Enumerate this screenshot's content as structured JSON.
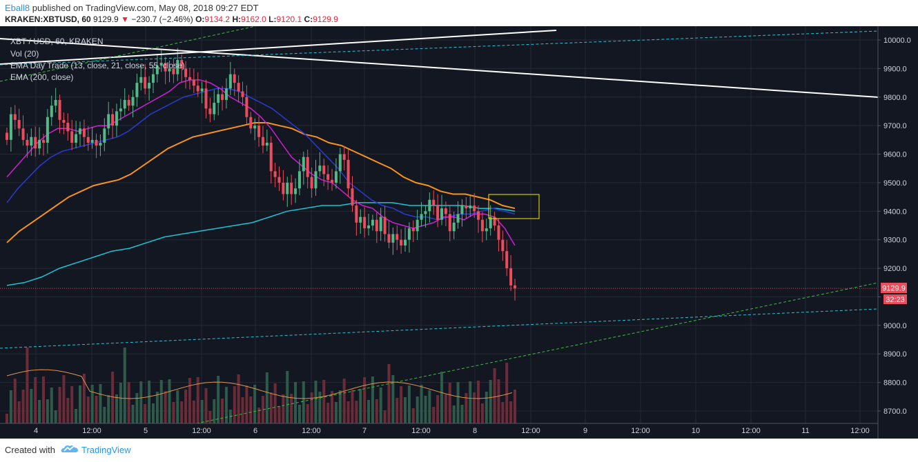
{
  "header": {
    "username": "Eball8",
    "published_text": " published on TradingView.com, May 08, 2018 09:27 EDT",
    "symbol": "KRAKEN:XBTUSD, 60",
    "last": "9129.9",
    "change": "−230.7 (−2.46%)",
    "o_label": "O:",
    "o_value": "9134.2",
    "h_label": "H:",
    "h_value": "9162.0",
    "l_label": "L:",
    "l_value": "9120.1",
    "c_label": "C:",
    "c_value": "9129.9"
  },
  "legend": {
    "line1": "XBT / USD, 60, KRAKEN",
    "line2": "Vol (20)",
    "line3": "EMA Day Trade (13, close, 21, close, 55, close)",
    "line4": "EMA (200, close)"
  },
  "price_tag": "9129.9",
  "countdown_tag": "32:23",
  "footer": {
    "created_with": "Created with",
    "brand": "TradingView"
  },
  "colors": {
    "background": "#131722",
    "grid": "#262a35",
    "up": "#53b987",
    "down": "#eb4d5c",
    "vol_up": "#2f5a4a",
    "vol_down": "#6b2c38",
    "ema13": "#d11fd2",
    "ema21": "#2a3bd6",
    "ema55": "#f7931a",
    "ema200": "#1bc4d4",
    "trendline": "#ffffff",
    "channel_cyan": "#26c6da",
    "channel_green": "#3fc13f",
    "box": "#ffe400",
    "price_tag": "#eb4d5c"
  },
  "chart_data": {
    "type": "candlestick",
    "y_axis": {
      "ticks": [
        8700,
        8800,
        8900,
        9000,
        9100,
        9200,
        9300,
        9400,
        9500,
        9600,
        9700,
        9800,
        9900,
        10000
      ],
      "range": [
        8660,
        10035
      ]
    },
    "x_axis": {
      "tick_labels": [
        "4",
        "12:00",
        "5",
        "12:00",
        "6",
        "12:00",
        "7",
        "12:00",
        "8",
        "12:00",
        "9",
        "12:00",
        "10",
        "12:00",
        "11",
        "12:00"
      ]
    },
    "candles_close": [
      9650,
      9740,
      9720,
      9690,
      9650,
      9630,
      9660,
      9620,
      9650,
      9640,
      9730,
      9770,
      9790,
      9720,
      9710,
      9680,
      9640,
      9670,
      9690,
      9660,
      9640,
      9650,
      9630,
      9640,
      9690,
      9740,
      9700,
      9750,
      9760,
      9790,
      9770,
      9800,
      9850,
      9870,
      9830,
      9850,
      9880,
      9910,
      9920,
      9890,
      9900,
      9880,
      9930,
      9900,
      9870,
      9860,
      9840,
      9820,
      9830,
      9760,
      9740,
      9780,
      9810,
      9790,
      9830,
      9880,
      9850,
      9820,
      9800,
      9730,
      9690,
      9700,
      9660,
      9630,
      9640,
      9540,
      9520,
      9500,
      9460,
      9500,
      9460,
      9480,
      9540,
      9590,
      9520,
      9480,
      9540,
      9560,
      9530,
      9510,
      9500,
      9540,
      9600,
      9580,
      9480,
      9420,
      9360,
      9380,
      9340,
      9350,
      9370,
      9330,
      9380,
      9320,
      9290,
      9320,
      9300,
      9280,
      9300,
      9340,
      9330,
      9370,
      9390,
      9400,
      9440,
      9420,
      9370,
      9410,
      9390,
      9330,
      9360,
      9390,
      9420,
      9410,
      9420,
      9400,
      9370,
      9330,
      9340,
      9380,
      9350,
      9300,
      9260,
      9200,
      9140,
      9130
    ],
    "ema13": [
      9520,
      9560,
      9600,
      9640,
      9670,
      9690,
      9690,
      9680,
      9690,
      9700,
      9700,
      9720,
      9740,
      9760,
      9780,
      9800,
      9820,
      9850,
      9860,
      9860,
      9850,
      9830,
      9800,
      9780,
      9760,
      9730,
      9690,
      9640,
      9590,
      9560,
      9530,
      9510,
      9500,
      9470,
      9440,
      9420,
      9410,
      9380,
      9360,
      9350,
      9340,
      9350,
      9360,
      9380,
      9380,
      9370,
      9390,
      9390,
      9380,
      9340,
      9280
    ],
    "ema21": [
      9430,
      9480,
      9520,
      9560,
      9590,
      9610,
      9620,
      9630,
      9640,
      9650,
      9660,
      9680,
      9710,
      9740,
      9760,
      9780,
      9800,
      9810,
      9820,
      9830,
      9830,
      9820,
      9800,
      9780,
      9760,
      9730,
      9700,
      9670,
      9630,
      9590,
      9550,
      9500,
      9470,
      9440,
      9420,
      9410,
      9390,
      9380,
      9380,
      9370,
      9380,
      9390,
      9390,
      9400,
      9410,
      9400,
      9390
    ],
    "ema55": [
      9290,
      9330,
      9360,
      9390,
      9420,
      9450,
      9470,
      9490,
      9500,
      9510,
      9530,
      9560,
      9590,
      9620,
      9640,
      9660,
      9670,
      9680,
      9690,
      9700,
      9710,
      9710,
      9700,
      9690,
      9670,
      9660,
      9640,
      9630,
      9610,
      9590,
      9570,
      9550,
      9520,
      9500,
      9490,
      9470,
      9460,
      9460,
      9450,
      9440,
      9420,
      9410
    ],
    "ema200": [
      9140,
      9150,
      9170,
      9200,
      9220,
      9240,
      9260,
      9270,
      9290,
      9310,
      9320,
      9330,
      9340,
      9350,
      9360,
      9380,
      9400,
      9410,
      9420,
      9420,
      9430,
      9430,
      9430,
      9420,
      9420,
      9420,
      9420,
      9410,
      9410,
      9400
    ]
  }
}
